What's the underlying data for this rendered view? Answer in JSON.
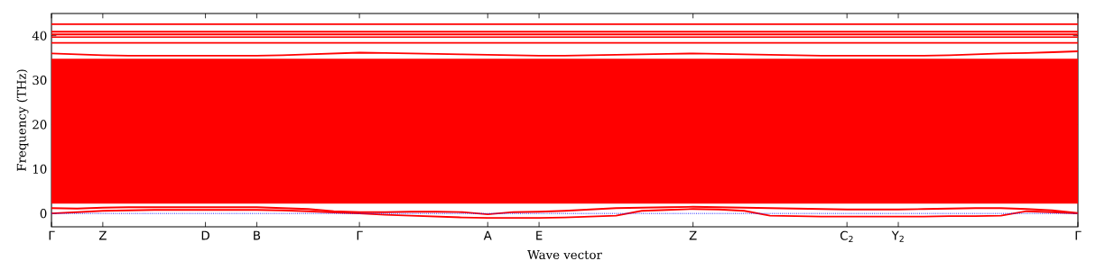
{
  "chart_data": {
    "type": "line",
    "xlabel": "Wave vector",
    "ylabel": "Frequency (THz)",
    "ylim": [
      -3,
      45
    ],
    "yticks": [
      0,
      10,
      20,
      30,
      40
    ],
    "categories": [
      "Γ",
      null,
      "Z",
      null,
      null,
      null,
      "D",
      null,
      "B",
      null,
      null,
      null,
      "Γ",
      null,
      null,
      null,
      null,
      "A",
      null,
      "E",
      null,
      null,
      null,
      null,
      null,
      "Z",
      null,
      null,
      null,
      null,
      null,
      "C$_{2}$",
      null,
      "Y$_{2}$",
      null,
      null,
      null,
      null,
      null,
      null,
      "Γ"
    ],
    "ref_lines": [
      {
        "axis": "y",
        "value": 0,
        "color": "#0000ff",
        "line_style": "dotted"
      }
    ],
    "bands": [
      {
        "axis": "y",
        "from": 2.2,
        "to": 34.8,
        "color": "#ff0000"
      }
    ],
    "series": [
      {
        "color": "#ff0000",
        "values": [
          36.0,
          35.8,
          35.6,
          35.5,
          35.5,
          35.5,
          35.5,
          35.5,
          35.5,
          35.6,
          35.8,
          36.0,
          36.2,
          36.1,
          36.0,
          35.9,
          35.8,
          35.7,
          35.6,
          35.5,
          35.5,
          35.6,
          35.7,
          35.8,
          35.9,
          36.0,
          35.9,
          35.8,
          35.7,
          35.6,
          35.5,
          35.5,
          35.5,
          35.5,
          35.5,
          35.6,
          35.8,
          36.0,
          36.1,
          36.3,
          36.5
        ]
      },
      {
        "color": "#ff0000",
        "values": [
          42.6,
          42.6,
          42.6,
          42.6,
          42.6,
          42.6,
          42.6,
          42.6,
          42.6,
          42.6,
          42.6,
          42.6,
          42.6,
          42.6,
          42.6,
          42.6,
          42.6,
          42.6,
          42.6,
          42.6,
          42.6,
          42.6,
          42.6,
          42.6,
          42.6,
          42.6,
          42.6,
          42.6,
          42.6,
          42.6,
          42.6,
          42.6,
          42.6,
          42.6,
          42.6,
          42.6,
          42.6,
          42.6,
          42.6,
          42.6,
          42.6
        ]
      },
      {
        "color": "#ff0000",
        "values": [
          40.9,
          40.9,
          40.9,
          40.9,
          40.9,
          40.9,
          40.9,
          40.9,
          40.9,
          40.9,
          40.9,
          40.9,
          40.9,
          40.9,
          40.9,
          40.9,
          40.9,
          40.9,
          40.9,
          40.9,
          40.9,
          40.9,
          40.9,
          40.9,
          40.9,
          40.9,
          40.9,
          40.9,
          40.9,
          40.9,
          40.9,
          40.9,
          40.9,
          40.9,
          40.9,
          40.9,
          40.9,
          40.9,
          40.9,
          40.9,
          40.9
        ]
      },
      {
        "color": "#ff0000",
        "values": [
          40.3,
          40.3,
          40.3,
          40.3,
          40.3,
          40.3,
          40.3,
          40.3,
          40.3,
          40.3,
          40.3,
          40.3,
          40.3,
          40.3,
          40.3,
          40.3,
          40.3,
          40.3,
          40.3,
          40.3,
          40.3,
          40.3,
          40.3,
          40.3,
          40.3,
          40.3,
          40.3,
          40.3,
          40.3,
          40.3,
          40.3,
          40.3,
          40.3,
          40.3,
          40.3,
          40.3,
          40.3,
          40.3,
          40.3,
          40.3,
          40.3
        ]
      },
      {
        "color": "#ff0000",
        "values": [
          39.7,
          39.7,
          39.7,
          39.7,
          39.7,
          39.7,
          39.7,
          39.7,
          39.7,
          39.7,
          39.7,
          39.7,
          39.7,
          39.7,
          39.7,
          39.7,
          39.7,
          39.7,
          39.7,
          39.7,
          39.7,
          39.7,
          39.7,
          39.7,
          39.7,
          39.7,
          39.7,
          39.7,
          39.7,
          39.7,
          39.7,
          39.7,
          39.7,
          39.7,
          39.7,
          39.7,
          39.7,
          39.7,
          39.7,
          39.7,
          39.7
        ]
      },
      {
        "color": "#ff0000",
        "values": [
          38.4,
          38.4,
          38.4,
          38.4,
          38.4,
          38.4,
          38.4,
          38.4,
          38.4,
          38.4,
          38.4,
          38.4,
          38.4,
          38.4,
          38.4,
          38.4,
          38.4,
          38.4,
          38.4,
          38.4,
          38.4,
          38.4,
          38.4,
          38.4,
          38.4,
          38.4,
          38.4,
          38.4,
          38.4,
          38.4,
          38.4,
          38.4,
          38.4,
          38.4,
          38.4,
          38.4,
          38.4,
          38.4,
          38.4,
          38.4,
          38.4
        ]
      },
      {
        "color": "#ff0000",
        "values": [
          0,
          0.3,
          0.6,
          0.7,
          0.8,
          0.8,
          0.8,
          0.8,
          0.8,
          0.7,
          0.5,
          0.2,
          0,
          -0.3,
          -0.5,
          -0.7,
          -0.9,
          -1.0,
          -1.0,
          -1.0,
          -0.9,
          -0.7,
          -0.5,
          0.6,
          0.8,
          1.0,
          0.9,
          0.6,
          -0.5,
          -0.6,
          -0.7,
          -0.7,
          -0.7,
          -0.7,
          -0.7,
          -0.6,
          -0.6,
          -0.5,
          0.5,
          0.3,
          0
        ]
      },
      {
        "color": "#ff0000",
        "values": [
          1.2,
          1.1,
          1.3,
          1.4,
          1.4,
          1.4,
          1.4,
          1.4,
          1.4,
          1.2,
          1.0,
          0.5,
          0.3,
          0.3,
          0.4,
          0.4,
          0.3,
          -0.2,
          0.3,
          0.4,
          0.6,
          0.9,
          1.2,
          1.3,
          1.4,
          1.5,
          1.4,
          1.3,
          1.2,
          1.1,
          1.0,
          0.9,
          0.9,
          0.9,
          1.0,
          1.1,
          1.2,
          1.2,
          1.0,
          0.7,
          0.1
        ]
      }
    ]
  }
}
